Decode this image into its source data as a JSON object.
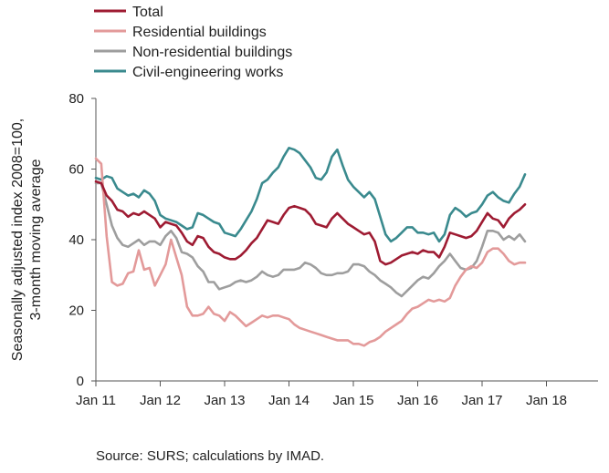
{
  "chart_data": {
    "type": "line",
    "title": "",
    "ylabel_lines": [
      "Seasonally adjusted index 2008=100,",
      "3-month moving average"
    ],
    "xlabel": "",
    "ylim": [
      0,
      80
    ],
    "yticks": [
      0,
      20,
      40,
      60,
      80
    ],
    "xlim": [
      "2011-01",
      "2018-09"
    ],
    "xticks": [
      "Jan 11",
      "Jan 12",
      "Jan 13",
      "Jan 14",
      "Jan 15",
      "Jan 16",
      "Jan 17",
      "Jan 18"
    ],
    "grid": false,
    "legend_position": "top-left",
    "source": "Source: SURS; calculations by IMAD.",
    "x_start": "2011-01",
    "series": [
      {
        "name": "Total",
        "color": "#9e1b32",
        "values": [
          56.5,
          56.0,
          52.5,
          51.0,
          48.5,
          48.0,
          46.5,
          47.5,
          47.0,
          48.0,
          47.0,
          46.0,
          43.5,
          45.0,
          44.5,
          44.0,
          42.0,
          39.5,
          38.5,
          41.0,
          40.5,
          38.0,
          36.5,
          36.0,
          35.0,
          34.5,
          34.5,
          35.5,
          37.0,
          39.0,
          40.5,
          43.0,
          45.5,
          45.0,
          44.5,
          47.0,
          49.0,
          49.5,
          49.0,
          48.5,
          47.0,
          44.5,
          44.0,
          43.5,
          46.0,
          47.5,
          46.0,
          44.5,
          43.5,
          42.5,
          41.5,
          42.0,
          39.5,
          34.0,
          33.0,
          33.5,
          34.5,
          35.5,
          36.0,
          36.5,
          36.0,
          37.0,
          36.5,
          36.5,
          35.0,
          38.0,
          42.0,
          41.5,
          41.0,
          40.5,
          41.0,
          42.5,
          45.0,
          47.5,
          46.0,
          45.5,
          43.5,
          46.0,
          47.5,
          48.5,
          50.0
        ]
      },
      {
        "name": "Residential buildings",
        "color": "#e39a9a",
        "values": [
          63.0,
          61.5,
          41.0,
          28.0,
          27.0,
          27.5,
          30.5,
          31.0,
          37.0,
          31.5,
          32.0,
          27.0,
          30.0,
          33.0,
          40.0,
          35.0,
          30.0,
          21.0,
          18.5,
          18.5,
          19.0,
          21.0,
          19.0,
          18.5,
          17.0,
          19.5,
          18.5,
          17.0,
          15.5,
          16.5,
          17.5,
          18.5,
          18.0,
          18.5,
          18.5,
          18.0,
          17.5,
          16.0,
          15.0,
          14.5,
          14.0,
          13.5,
          13.0,
          12.5,
          12.0,
          11.5,
          11.5,
          11.5,
          10.5,
          10.5,
          10.0,
          11.0,
          11.5,
          12.5,
          14.0,
          15.0,
          16.0,
          17.0,
          19.0,
          20.5,
          21.0,
          22.0,
          23.0,
          22.5,
          23.0,
          22.5,
          23.5,
          27.0,
          29.5,
          31.5,
          32.5,
          32.0,
          33.5,
          36.5,
          37.5,
          37.5,
          36.0,
          34.0,
          33.0,
          33.5,
          33.5
        ]
      },
      {
        "name": "Non-residential buildings",
        "color": "#9e9e9e",
        "values": [
          56.0,
          56.0,
          50.0,
          44.0,
          40.5,
          38.5,
          38.0,
          39.0,
          40.0,
          38.5,
          39.5,
          39.5,
          38.5,
          41.0,
          42.5,
          40.5,
          36.5,
          36.0,
          35.0,
          32.5,
          31.0,
          28.0,
          28.0,
          26.0,
          26.5,
          27.0,
          28.0,
          28.5,
          28.0,
          28.5,
          29.5,
          31.0,
          30.0,
          29.5,
          30.0,
          31.5,
          31.5,
          31.5,
          32.0,
          33.5,
          33.0,
          32.0,
          30.5,
          30.0,
          30.0,
          30.5,
          30.5,
          31.0,
          33.0,
          33.0,
          32.5,
          31.0,
          30.0,
          28.5,
          27.5,
          26.5,
          25.0,
          24.0,
          25.5,
          27.0,
          28.5,
          29.5,
          29.0,
          30.5,
          32.5,
          34.0,
          36.0,
          34.0,
          32.0,
          31.5,
          32.0,
          34.0,
          38.0,
          42.5,
          42.5,
          42.0,
          40.0,
          41.0,
          40.0,
          41.5,
          39.5
        ]
      },
      {
        "name": "Civil-engineering works",
        "color": "#3a8a8e",
        "values": [
          57.5,
          57.0,
          58.0,
          57.5,
          54.5,
          53.5,
          52.5,
          53.0,
          52.0,
          54.0,
          53.0,
          51.0,
          47.0,
          46.0,
          45.5,
          45.0,
          44.0,
          43.0,
          43.5,
          47.5,
          47.0,
          46.0,
          45.0,
          44.5,
          42.0,
          41.5,
          41.0,
          43.0,
          45.5,
          48.0,
          51.5,
          56.0,
          57.0,
          59.0,
          60.5,
          63.5,
          66.0,
          65.5,
          64.5,
          62.5,
          60.5,
          57.5,
          57.0,
          59.0,
          63.5,
          65.5,
          61.0,
          57.0,
          55.0,
          53.5,
          52.0,
          53.5,
          51.5,
          46.5,
          41.5,
          39.5,
          40.5,
          42.0,
          43.5,
          43.5,
          42.0,
          42.0,
          41.5,
          42.0,
          39.5,
          41.5,
          47.0,
          49.0,
          48.0,
          46.5,
          47.5,
          48.0,
          50.0,
          52.5,
          53.5,
          52.0,
          51.0,
          50.5,
          53.0,
          55.0,
          58.5
        ]
      }
    ]
  }
}
